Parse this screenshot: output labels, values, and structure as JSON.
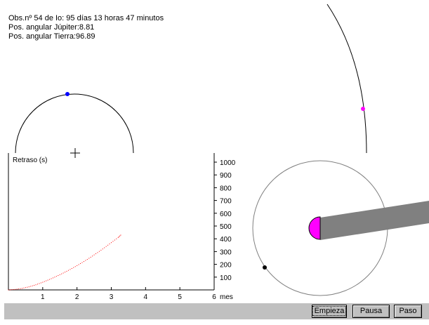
{
  "info": {
    "observation": "Obs.nº 54 de Io: 95 días 13 horas 47 minutos",
    "jupiter_position": "Pos. angular Júpiter:8.81",
    "earth_position": "Pos. angular Tierra:96.89"
  },
  "graph": {
    "ylabel": "Retraso (s)",
    "xunit": "mes",
    "x_ticks": [
      "1",
      "2",
      "3",
      "4",
      "5",
      "6"
    ],
    "y_ticks": [
      "100",
      "200",
      "300",
      "400",
      "500",
      "600",
      "700",
      "800",
      "900",
      "1000"
    ]
  },
  "chart_data": {
    "type": "scatter",
    "title": "",
    "xlabel": "mes",
    "ylabel": "Retraso (s)",
    "xlim": [
      0,
      6
    ],
    "ylim": [
      0,
      1000
    ],
    "grid": false,
    "series": [
      {
        "color": "#ff0000",
        "points": [
          [
            0.0,
            0
          ],
          [
            0.2,
            4
          ],
          [
            0.4,
            12
          ],
          [
            0.6,
            24
          ],
          [
            0.8,
            40
          ],
          [
            1.0,
            60
          ],
          [
            1.2,
            82
          ],
          [
            1.4,
            106
          ],
          [
            1.6,
            132
          ],
          [
            1.8,
            160
          ],
          [
            2.0,
            190
          ],
          [
            2.2,
            222
          ],
          [
            2.4,
            256
          ],
          [
            2.6,
            292
          ],
          [
            2.8,
            330
          ],
          [
            3.0,
            370
          ],
          [
            3.2,
            410
          ],
          [
            3.3,
            435
          ]
        ]
      }
    ]
  },
  "colors": {
    "io": "#0000ff",
    "jupiter": "#ff00ff",
    "earth": "#000000",
    "shadow": "#808080",
    "delay": "#ff0000",
    "control_bar": "#c0c0c0"
  },
  "controls": {
    "start_label": "Empieza",
    "pause_label": "Pausa",
    "step_label": "Paso"
  }
}
